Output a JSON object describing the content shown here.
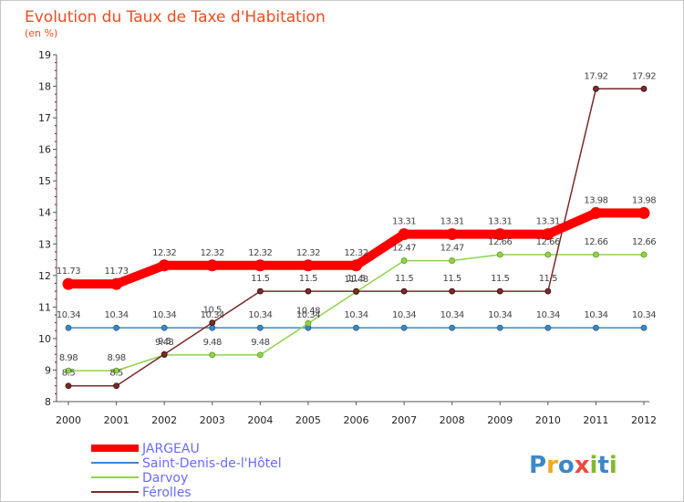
{
  "chart_data": {
    "type": "line",
    "title": "Evolution du Taux de Taxe d'Habitation",
    "subtitle": "(en %)",
    "xlabel": "",
    "ylabel": "",
    "x": [
      "2000",
      "2001",
      "2002",
      "2003",
      "2004",
      "2005",
      "2006",
      "2007",
      "2008",
      "2009",
      "2010",
      "2011",
      "2012"
    ],
    "ylim": [
      8,
      19
    ],
    "yticks": [
      8,
      9,
      10,
      11,
      12,
      13,
      14,
      15,
      16,
      17,
      18,
      19
    ],
    "grid": false,
    "legend_position": "bottom-left",
    "series": [
      {
        "name": "JARGEAU",
        "color": "#ff0000",
        "values": [
          11.73,
          11.73,
          12.32,
          12.32,
          12.32,
          12.32,
          12.32,
          13.31,
          13.31,
          13.31,
          13.31,
          13.98,
          13.98
        ],
        "labels": [
          "11.73",
          "11.73",
          "12.32",
          "12.32",
          "12.32",
          "12.32",
          "12.32",
          "13.31",
          "13.31",
          "13.31",
          "13.31",
          "13.98",
          "13.98"
        ]
      },
      {
        "name": "Saint-Denis-de-l'Hôtel",
        "color": "#3c88c7",
        "values": [
          10.34,
          10.34,
          10.34,
          10.34,
          10.34,
          10.34,
          10.34,
          10.34,
          10.34,
          10.34,
          10.34,
          10.34,
          10.34
        ],
        "labels": [
          "10.34",
          "10.34",
          "10.34",
          "10.34",
          "10.34",
          "10.34",
          "10.34",
          "10.34",
          "10.34",
          "10.34",
          "10.34",
          "10.34",
          "10.34"
        ]
      },
      {
        "name": "Darvoy",
        "color": "#8fd44a",
        "values": [
          8.98,
          8.98,
          9.48,
          9.48,
          9.48,
          10.48,
          11.48,
          12.47,
          12.47,
          12.66,
          12.66,
          12.66,
          12.66
        ],
        "labels": [
          "8.98",
          "8.98",
          "9.48",
          "9.48",
          "9.48",
          "10.48",
          "11.48",
          "12.47",
          "12.47",
          "12.66",
          "12.66",
          "12.66",
          "12.66"
        ]
      },
      {
        "name": "Férolles",
        "color": "#7a2a2a",
        "values": [
          8.5,
          8.5,
          9.5,
          10.5,
          11.5,
          11.5,
          11.5,
          11.5,
          11.5,
          11.5,
          11.5,
          17.92,
          17.92
        ],
        "labels": [
          "8.5",
          "8.5",
          "9.5",
          "10.5",
          "11.5",
          "11.5",
          "11.5",
          "11.5",
          "11.5",
          "11.5",
          "11.5",
          "17.92",
          "17.92"
        ]
      }
    ]
  },
  "brand": {
    "text": "Proxiti"
  }
}
